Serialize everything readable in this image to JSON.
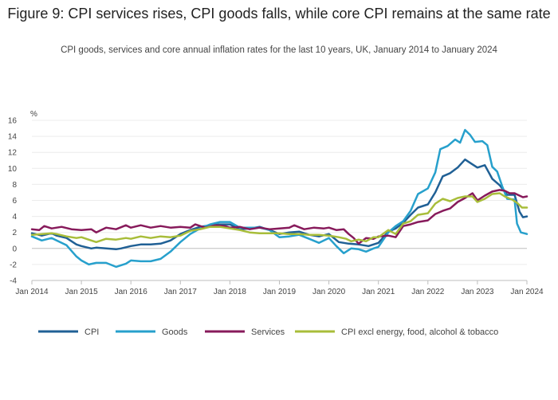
{
  "header": {
    "title": "Figure 9: CPI services rises, CPI goods falls, while core CPI remains at the same rate",
    "subtitle": "CPI goods, services and core annual inflation rates for the last 10 years, UK, January 2014 to January 2024"
  },
  "chart_data": {
    "type": "line",
    "ylabel": "%",
    "ylim": [
      -4,
      16
    ],
    "yticks": [
      -4,
      -2,
      0,
      2,
      4,
      6,
      8,
      10,
      12,
      14,
      16
    ],
    "xlim": [
      2014.0,
      2024.0
    ],
    "xticks": [
      {
        "value": 2014,
        "label": "Jan 2014"
      },
      {
        "value": 2015,
        "label": "Jan 2015"
      },
      {
        "value": 2016,
        "label": "Jan 2016"
      },
      {
        "value": 2017,
        "label": "Jan 2017"
      },
      {
        "value": 2018,
        "label": "Jan 2018"
      },
      {
        "value": 2019,
        "label": "Jan 2019"
      },
      {
        "value": 2020,
        "label": "Jan 2020"
      },
      {
        "value": 2021,
        "label": "Jan 2021"
      },
      {
        "value": 2022,
        "label": "Jan 2022"
      },
      {
        "value": 2023,
        "label": "Jan 2023"
      },
      {
        "value": 2024,
        "label": "Jan 2024"
      }
    ],
    "grid": "horizontal",
    "legend_position": "bottom",
    "series": [
      {
        "name": "CPI",
        "color": "#206095",
        "points": [
          [
            2014.0,
            1.9
          ],
          [
            2014.2,
            1.6
          ],
          [
            2014.4,
            1.9
          ],
          [
            2014.5,
            1.6
          ],
          [
            2014.7,
            1.3
          ],
          [
            2014.9,
            0.5
          ],
          [
            2015.0,
            0.3
          ],
          [
            2015.2,
            0.0
          ],
          [
            2015.3,
            0.1
          ],
          [
            2015.5,
            0.0
          ],
          [
            2015.7,
            -0.1
          ],
          [
            2015.8,
            0.0
          ],
          [
            2016.0,
            0.3
          ],
          [
            2016.2,
            0.5
          ],
          [
            2016.4,
            0.5
          ],
          [
            2016.6,
            0.6
          ],
          [
            2016.8,
            1.0
          ],
          [
            2017.0,
            1.8
          ],
          [
            2017.2,
            2.3
          ],
          [
            2017.4,
            2.7
          ],
          [
            2017.6,
            2.9
          ],
          [
            2017.8,
            3.0
          ],
          [
            2018.0,
            3.0
          ],
          [
            2018.2,
            2.4
          ],
          [
            2018.4,
            2.5
          ],
          [
            2018.6,
            2.7
          ],
          [
            2018.8,
            2.3
          ],
          [
            2019.0,
            1.8
          ],
          [
            2019.2,
            2.0
          ],
          [
            2019.4,
            2.1
          ],
          [
            2019.6,
            1.7
          ],
          [
            2019.8,
            1.5
          ],
          [
            2020.0,
            1.8
          ],
          [
            2020.2,
            0.8
          ],
          [
            2020.4,
            0.6
          ],
          [
            2020.6,
            0.5
          ],
          [
            2020.8,
            0.3
          ],
          [
            2021.0,
            0.7
          ],
          [
            2021.2,
            2.1
          ],
          [
            2021.35,
            2.5
          ],
          [
            2021.5,
            3.2
          ],
          [
            2021.65,
            4.2
          ],
          [
            2021.8,
            5.1
          ],
          [
            2022.0,
            5.5
          ],
          [
            2022.15,
            7.0
          ],
          [
            2022.3,
            9.0
          ],
          [
            2022.45,
            9.4
          ],
          [
            2022.6,
            10.1
          ],
          [
            2022.75,
            11.1
          ],
          [
            2022.9,
            10.5
          ],
          [
            2023.0,
            10.1
          ],
          [
            2023.15,
            10.4
          ],
          [
            2023.3,
            8.7
          ],
          [
            2023.45,
            7.9
          ],
          [
            2023.6,
            6.7
          ],
          [
            2023.75,
            6.7
          ],
          [
            2023.85,
            4.6
          ],
          [
            2023.92,
            3.9
          ],
          [
            2024.0,
            4.0
          ]
        ]
      },
      {
        "name": "Goods",
        "color": "#27a0cc",
        "points": [
          [
            2014.0,
            1.5
          ],
          [
            2014.2,
            1.0
          ],
          [
            2014.4,
            1.3
          ],
          [
            2014.5,
            1.0
          ],
          [
            2014.7,
            0.4
          ],
          [
            2014.9,
            -1.0
          ],
          [
            2015.0,
            -1.5
          ],
          [
            2015.15,
            -2.0
          ],
          [
            2015.3,
            -1.8
          ],
          [
            2015.5,
            -1.8
          ],
          [
            2015.7,
            -2.3
          ],
          [
            2015.9,
            -1.9
          ],
          [
            2016.0,
            -1.5
          ],
          [
            2016.2,
            -1.6
          ],
          [
            2016.4,
            -1.6
          ],
          [
            2016.6,
            -1.3
          ],
          [
            2016.8,
            -0.4
          ],
          [
            2017.0,
            0.8
          ],
          [
            2017.2,
            1.8
          ],
          [
            2017.4,
            2.5
          ],
          [
            2017.6,
            3.0
          ],
          [
            2017.8,
            3.3
          ],
          [
            2018.0,
            3.3
          ],
          [
            2018.2,
            2.6
          ],
          [
            2018.4,
            2.6
          ],
          [
            2018.6,
            2.6
          ],
          [
            2018.8,
            2.3
          ],
          [
            2019.0,
            1.4
          ],
          [
            2019.2,
            1.5
          ],
          [
            2019.4,
            1.7
          ],
          [
            2019.6,
            1.2
          ],
          [
            2019.8,
            0.7
          ],
          [
            2020.0,
            1.3
          ],
          [
            2020.15,
            0.3
          ],
          [
            2020.3,
            -0.6
          ],
          [
            2020.45,
            0.0
          ],
          [
            2020.6,
            -0.1
          ],
          [
            2020.75,
            -0.4
          ],
          [
            2020.9,
            0.0
          ],
          [
            2021.0,
            0.2
          ],
          [
            2021.2,
            2.0
          ],
          [
            2021.35,
            2.8
          ],
          [
            2021.5,
            3.4
          ],
          [
            2021.65,
            4.7
          ],
          [
            2021.8,
            6.8
          ],
          [
            2022.0,
            7.5
          ],
          [
            2022.15,
            9.5
          ],
          [
            2022.25,
            12.4
          ],
          [
            2022.4,
            12.8
          ],
          [
            2022.55,
            13.6
          ],
          [
            2022.65,
            13.2
          ],
          [
            2022.75,
            14.8
          ],
          [
            2022.85,
            14.2
          ],
          [
            2022.95,
            13.3
          ],
          [
            2023.1,
            13.4
          ],
          [
            2023.2,
            12.9
          ],
          [
            2023.3,
            10.2
          ],
          [
            2023.4,
            9.6
          ],
          [
            2023.5,
            7.8
          ],
          [
            2023.6,
            6.2
          ],
          [
            2023.75,
            6.1
          ],
          [
            2023.8,
            3.1
          ],
          [
            2023.88,
            2.0
          ],
          [
            2024.0,
            1.8
          ]
        ]
      },
      {
        "name": "Services",
        "color": "#871a5b",
        "points": [
          [
            2014.0,
            2.4
          ],
          [
            2014.15,
            2.3
          ],
          [
            2014.25,
            2.8
          ],
          [
            2014.4,
            2.5
          ],
          [
            2014.6,
            2.7
          ],
          [
            2014.8,
            2.4
          ],
          [
            2015.0,
            2.3
          ],
          [
            2015.2,
            2.4
          ],
          [
            2015.3,
            2.0
          ],
          [
            2015.5,
            2.6
          ],
          [
            2015.7,
            2.4
          ],
          [
            2015.9,
            2.9
          ],
          [
            2016.0,
            2.6
          ],
          [
            2016.2,
            2.9
          ],
          [
            2016.4,
            2.6
          ],
          [
            2016.6,
            2.8
          ],
          [
            2016.8,
            2.6
          ],
          [
            2017.0,
            2.7
          ],
          [
            2017.2,
            2.6
          ],
          [
            2017.3,
            3.0
          ],
          [
            2017.5,
            2.6
          ],
          [
            2017.7,
            2.9
          ],
          [
            2017.9,
            2.8
          ],
          [
            2018.0,
            2.6
          ],
          [
            2018.2,
            2.7
          ],
          [
            2018.4,
            2.4
          ],
          [
            2018.6,
            2.6
          ],
          [
            2018.8,
            2.4
          ],
          [
            2019.0,
            2.5
          ],
          [
            2019.2,
            2.6
          ],
          [
            2019.3,
            2.9
          ],
          [
            2019.5,
            2.4
          ],
          [
            2019.7,
            2.6
          ],
          [
            2019.9,
            2.5
          ],
          [
            2020.0,
            2.6
          ],
          [
            2020.15,
            2.3
          ],
          [
            2020.3,
            2.4
          ],
          [
            2020.4,
            1.8
          ],
          [
            2020.5,
            1.3
          ],
          [
            2020.6,
            0.6
          ],
          [
            2020.75,
            1.3
          ],
          [
            2020.9,
            1.2
          ],
          [
            2021.0,
            1.5
          ],
          [
            2021.2,
            1.6
          ],
          [
            2021.35,
            1.4
          ],
          [
            2021.5,
            2.8
          ],
          [
            2021.65,
            3.0
          ],
          [
            2021.8,
            3.3
          ],
          [
            2022.0,
            3.5
          ],
          [
            2022.15,
            4.3
          ],
          [
            2022.3,
            4.7
          ],
          [
            2022.45,
            5.0
          ],
          [
            2022.6,
            5.8
          ],
          [
            2022.75,
            6.3
          ],
          [
            2022.9,
            6.9
          ],
          [
            2023.0,
            6.0
          ],
          [
            2023.15,
            6.6
          ],
          [
            2023.3,
            7.1
          ],
          [
            2023.45,
            7.3
          ],
          [
            2023.55,
            7.2
          ],
          [
            2023.65,
            6.9
          ],
          [
            2023.75,
            6.9
          ],
          [
            2023.85,
            6.6
          ],
          [
            2023.92,
            6.4
          ],
          [
            2024.0,
            6.5
          ]
        ]
      },
      {
        "name": "CPI excl energy, food, alcohol & tobacco",
        "color": "#a8bd3a",
        "points": [
          [
            2014.0,
            1.7
          ],
          [
            2014.2,
            1.8
          ],
          [
            2014.4,
            1.9
          ],
          [
            2014.5,
            1.8
          ],
          [
            2014.7,
            1.5
          ],
          [
            2014.9,
            1.3
          ],
          [
            2015.0,
            1.4
          ],
          [
            2015.2,
            1.0
          ],
          [
            2015.3,
            0.8
          ],
          [
            2015.5,
            1.2
          ],
          [
            2015.7,
            1.1
          ],
          [
            2015.9,
            1.3
          ],
          [
            2016.0,
            1.2
          ],
          [
            2016.2,
            1.5
          ],
          [
            2016.4,
            1.3
          ],
          [
            2016.6,
            1.5
          ],
          [
            2016.8,
            1.4
          ],
          [
            2017.0,
            1.6
          ],
          [
            2017.2,
            2.2
          ],
          [
            2017.4,
            2.4
          ],
          [
            2017.6,
            2.7
          ],
          [
            2017.8,
            2.7
          ],
          [
            2018.0,
            2.5
          ],
          [
            2018.2,
            2.3
          ],
          [
            2018.4,
            2.0
          ],
          [
            2018.6,
            1.9
          ],
          [
            2018.8,
            1.9
          ],
          [
            2019.0,
            1.9
          ],
          [
            2019.2,
            1.8
          ],
          [
            2019.4,
            1.8
          ],
          [
            2019.6,
            1.7
          ],
          [
            2019.8,
            1.7
          ],
          [
            2020.0,
            1.6
          ],
          [
            2020.2,
            1.4
          ],
          [
            2020.35,
            1.2
          ],
          [
            2020.45,
            0.9
          ],
          [
            2020.6,
            1.1
          ],
          [
            2020.75,
            0.9
          ],
          [
            2020.9,
            1.4
          ],
          [
            2021.0,
            1.4
          ],
          [
            2021.2,
            2.3
          ],
          [
            2021.35,
            1.8
          ],
          [
            2021.5,
            3.1
          ],
          [
            2021.65,
            3.4
          ],
          [
            2021.8,
            4.2
          ],
          [
            2022.0,
            4.4
          ],
          [
            2022.15,
            5.6
          ],
          [
            2022.3,
            6.2
          ],
          [
            2022.45,
            5.9
          ],
          [
            2022.6,
            6.3
          ],
          [
            2022.75,
            6.5
          ],
          [
            2022.9,
            6.5
          ],
          [
            2023.0,
            5.8
          ],
          [
            2023.15,
            6.2
          ],
          [
            2023.3,
            6.8
          ],
          [
            2023.45,
            6.9
          ],
          [
            2023.55,
            6.5
          ],
          [
            2023.7,
            6.1
          ],
          [
            2023.8,
            5.7
          ],
          [
            2023.9,
            5.1
          ],
          [
            2024.0,
            5.1
          ]
        ]
      }
    ]
  }
}
